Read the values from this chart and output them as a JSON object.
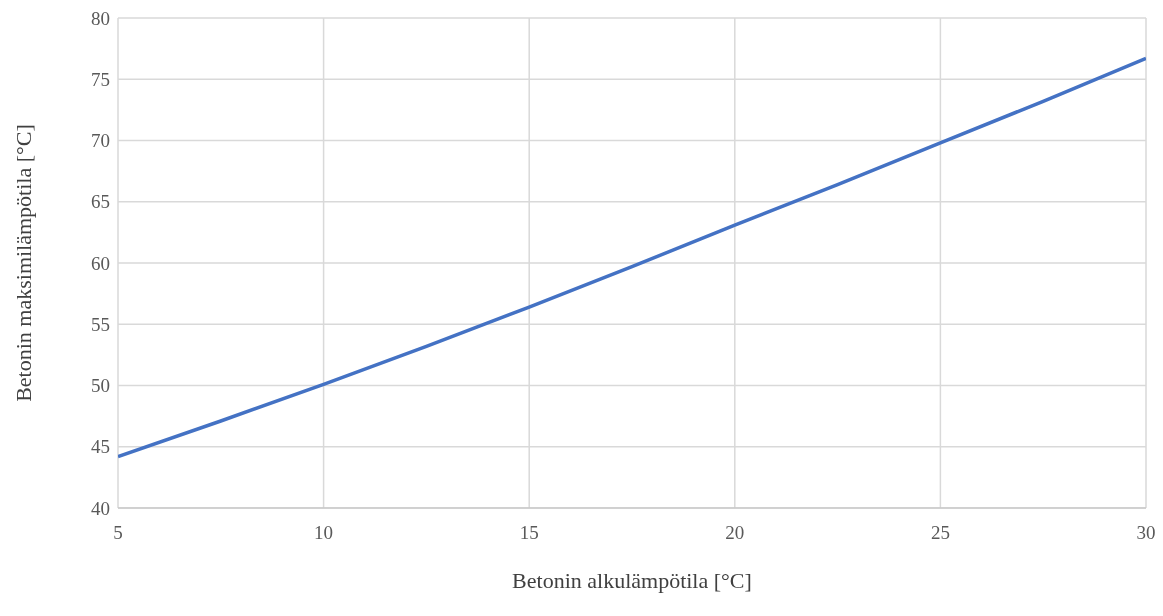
{
  "chart_data": {
    "type": "line",
    "xlabel": "Betonin alkulämpötila [°C]",
    "ylabel": "Betonin maksimilämpötila [°C]",
    "x": [
      5,
      7.5,
      10,
      12.5,
      15,
      17.5,
      20,
      22.5,
      25,
      27.5,
      30
    ],
    "series": [
      {
        "color": "#4472c4",
        "values": [
          44.2,
          47.1,
          50.1,
          53.2,
          56.4,
          59.7,
          63.1,
          66.4,
          69.8,
          73.2,
          76.7
        ]
      }
    ],
    "xlim": [
      5,
      30
    ],
    "xticks": [
      5,
      10,
      15,
      20,
      25,
      30
    ],
    "ylim": [
      40,
      80
    ],
    "yticks": [
      40,
      45,
      50,
      55,
      60,
      65,
      70,
      75,
      80
    ],
    "grid": true,
    "marker": "none",
    "line_style": "solid"
  }
}
